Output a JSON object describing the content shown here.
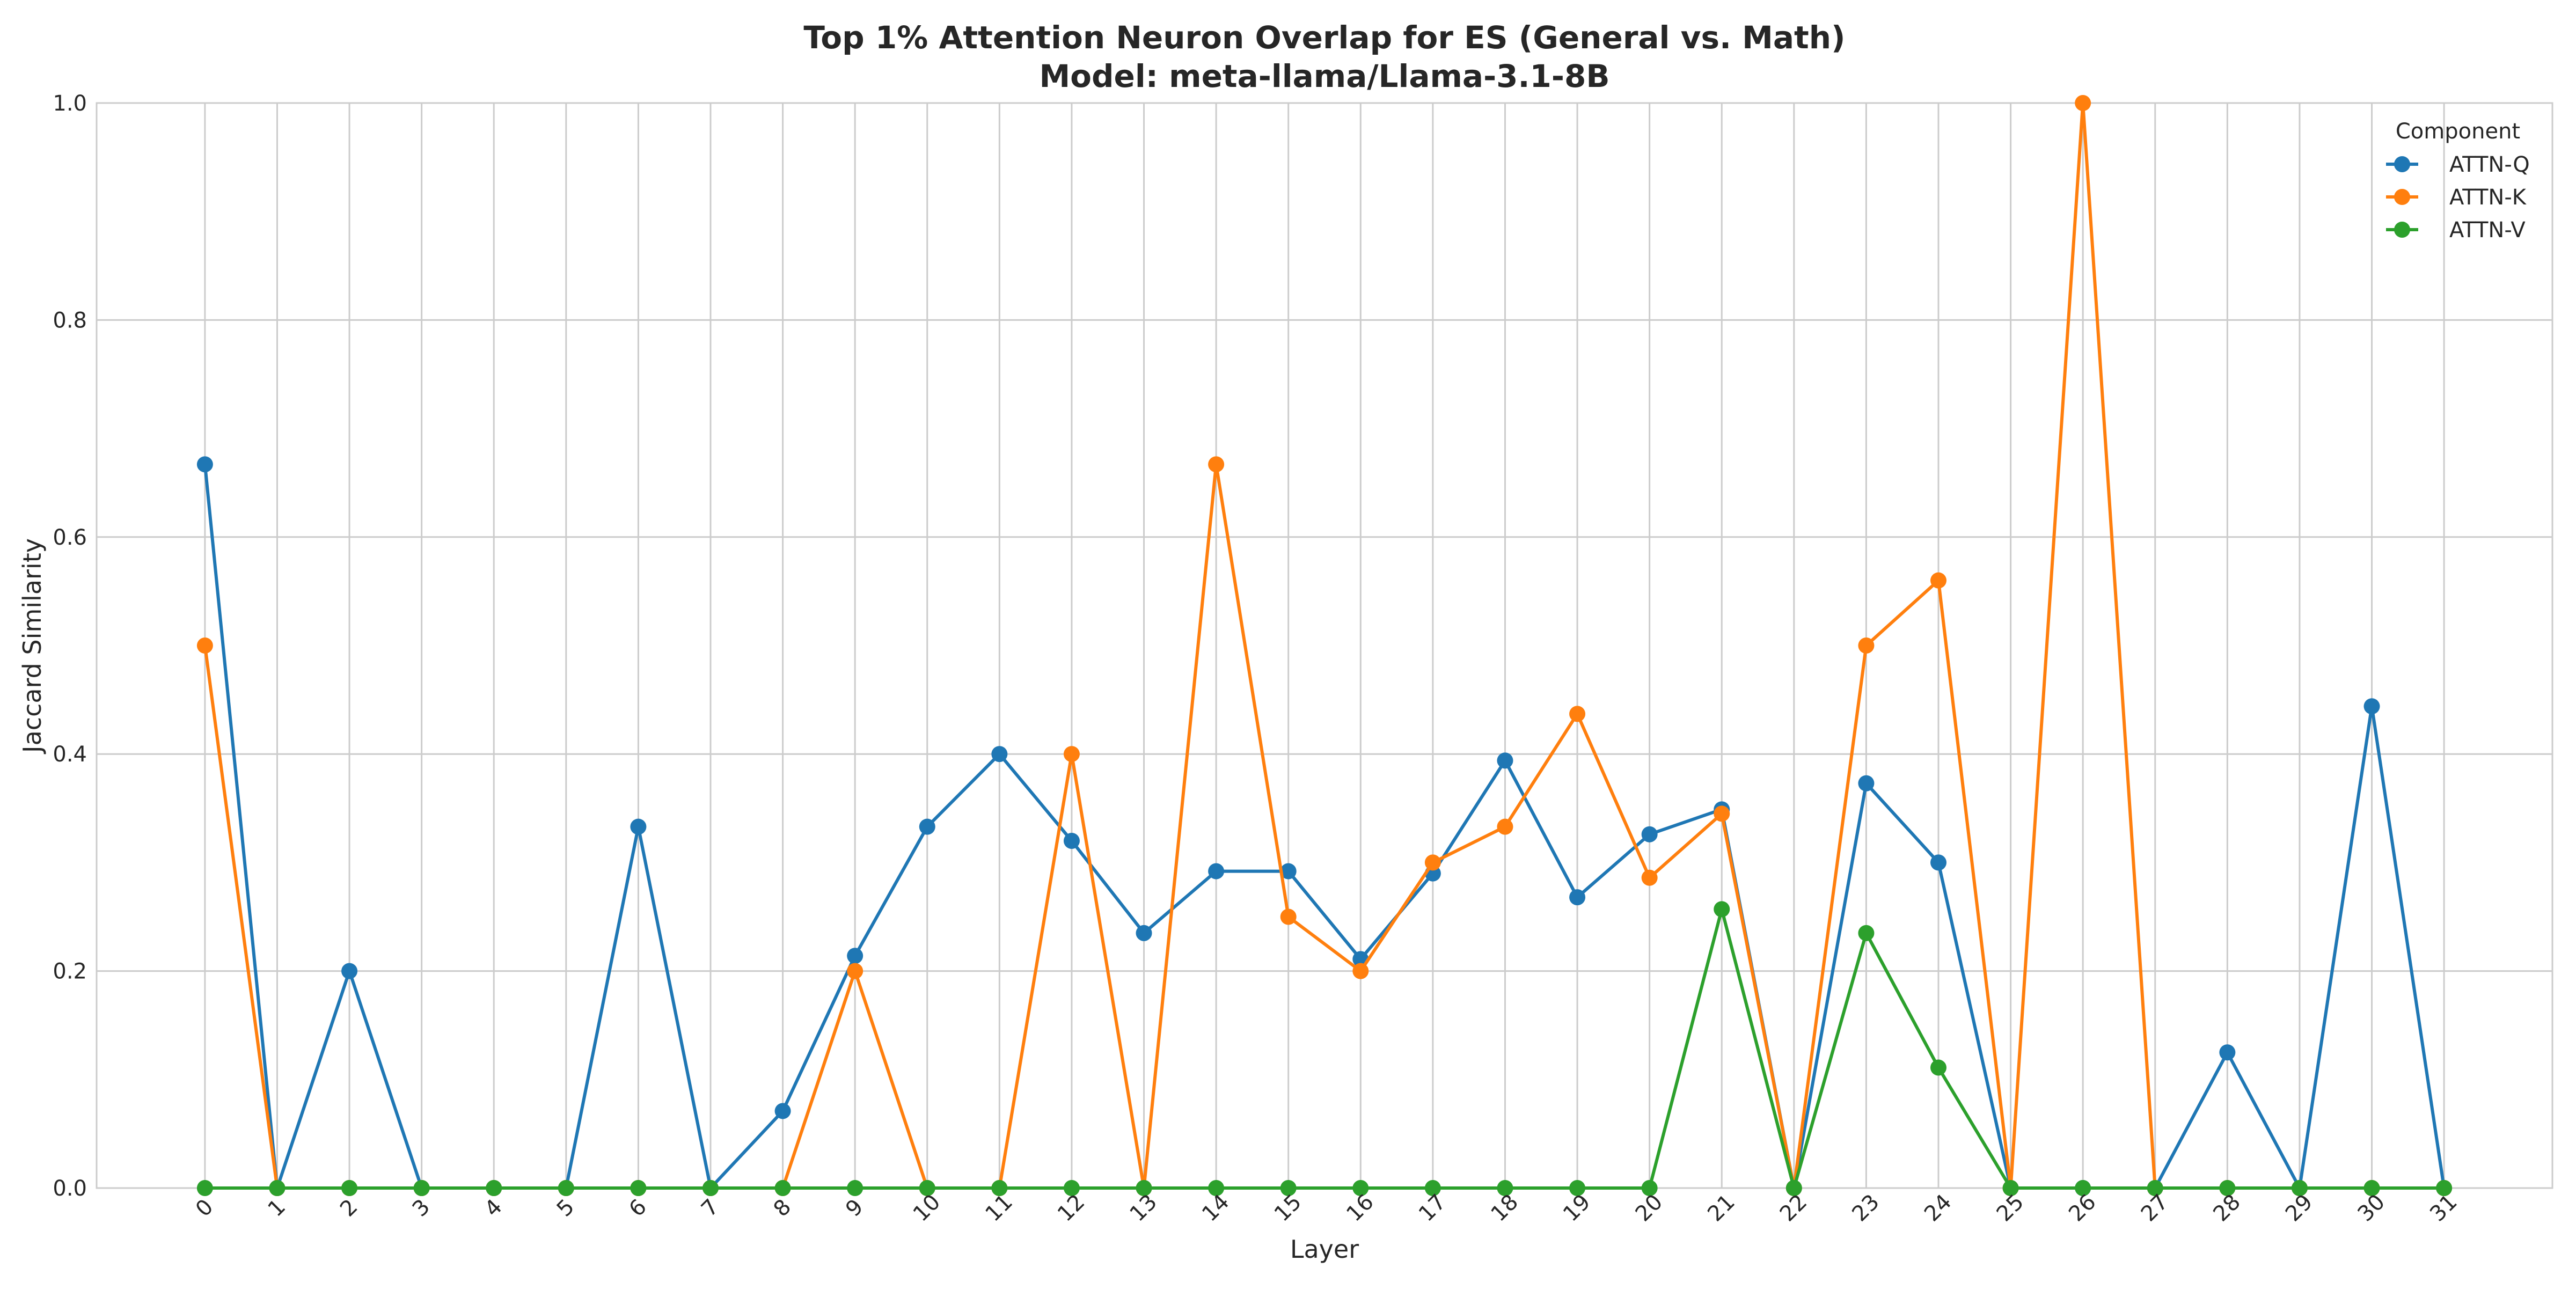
{
  "chart_data": {
    "type": "line",
    "title": "Top 1% Attention Neuron Overlap for ES (General vs. Math)",
    "subtitle": "Model: meta-llama/Llama-3.1-8B",
    "xlabel": "Layer",
    "ylabel": "Jaccard Similarity",
    "ylim": [
      0,
      1.0
    ],
    "yticks": [
      "0.0",
      "0.2",
      "0.4",
      "0.6",
      "0.8",
      "1.0"
    ],
    "x": [
      0,
      1,
      2,
      3,
      4,
      5,
      6,
      7,
      8,
      9,
      10,
      11,
      12,
      13,
      14,
      15,
      16,
      17,
      18,
      19,
      20,
      21,
      22,
      23,
      24,
      25,
      26,
      27,
      28,
      29,
      30,
      31
    ],
    "grid": true,
    "legend": {
      "title": "Component",
      "position": "top-right"
    },
    "series": [
      {
        "name": "ATTN-Q",
        "color": "#1f77b4",
        "values": [
          0.667,
          0,
          0.2,
          0,
          0,
          0,
          0.333,
          0,
          0.071,
          0.214,
          0.333,
          0.4,
          0.32,
          0.235,
          0.292,
          0.292,
          0.211,
          0.29,
          0.394,
          0.268,
          0.326,
          0.349,
          0,
          0.373,
          0.3,
          0,
          0,
          0,
          0.125,
          0,
          0.444,
          0
        ]
      },
      {
        "name": "ATTN-K",
        "color": "#ff7f0e",
        "values": [
          0.5,
          0,
          0,
          0,
          0,
          0,
          0,
          0,
          0,
          0.2,
          0,
          0,
          0.4,
          0,
          0.667,
          0.25,
          0.2,
          0.3,
          0.333,
          0.437,
          0.286,
          0.345,
          0,
          0.5,
          0.56,
          0,
          1.0,
          0,
          0,
          0,
          0,
          0
        ]
      },
      {
        "name": "ATTN-V",
        "color": "#2ca02c",
        "values": [
          0,
          0,
          0,
          0,
          0,
          0,
          0,
          0,
          0,
          0,
          0,
          0,
          0,
          0,
          0,
          0,
          0,
          0,
          0,
          0,
          0,
          0.257,
          0,
          0.235,
          0.111,
          0,
          0,
          0,
          0,
          0,
          0,
          0
        ]
      }
    ]
  }
}
